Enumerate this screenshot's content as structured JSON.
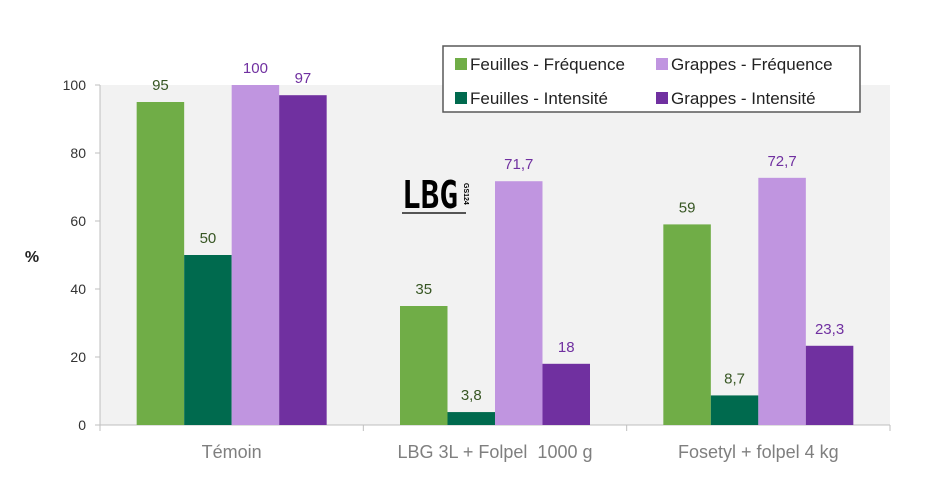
{
  "chart_data": {
    "type": "bar",
    "title": "",
    "xlabel": "",
    "ylabel": "%",
    "ylim": [
      0,
      100
    ],
    "yticks": [
      0,
      20,
      40,
      60,
      80,
      100
    ],
    "grid": false,
    "legend_position": "top-right",
    "categories": [
      "Témoin",
      "LBG 3L + Folpel  1000 g",
      "Fosetyl + folpel 4 kg"
    ],
    "series": [
      {
        "name": "Feuilles - Fréquence",
        "color": "#70ad47",
        "label_color": "#375623",
        "values": [
          95,
          35,
          59
        ],
        "labels": [
          "95",
          "35",
          "59"
        ]
      },
      {
        "name": "Feuilles - Intensité",
        "color": "#006a4e",
        "label_color": "#375623",
        "values": [
          50,
          3.8,
          8.7
        ],
        "labels": [
          "50",
          "3,8",
          "8,7"
        ]
      },
      {
        "name": "Grappes - Fréquence",
        "color": "#c095e0",
        "label_color": "#7030a0",
        "values": [
          100,
          71.7,
          72.7
        ],
        "labels": [
          "100",
          "71,7",
          "72,7"
        ]
      },
      {
        "name": "Grappes - Intensité",
        "color": "#7030a0",
        "label_color": "#7030a0",
        "values": [
          97,
          18,
          23.3
        ],
        "labels": [
          "97",
          "18",
          "23,3"
        ]
      }
    ],
    "legend_order": [
      0,
      2,
      1,
      3
    ]
  },
  "logo": {
    "text": "LBG",
    "subtext": "GS124"
  },
  "colors": {
    "plot_background": "#f2f2f2",
    "axis": "#bfbfbf"
  }
}
